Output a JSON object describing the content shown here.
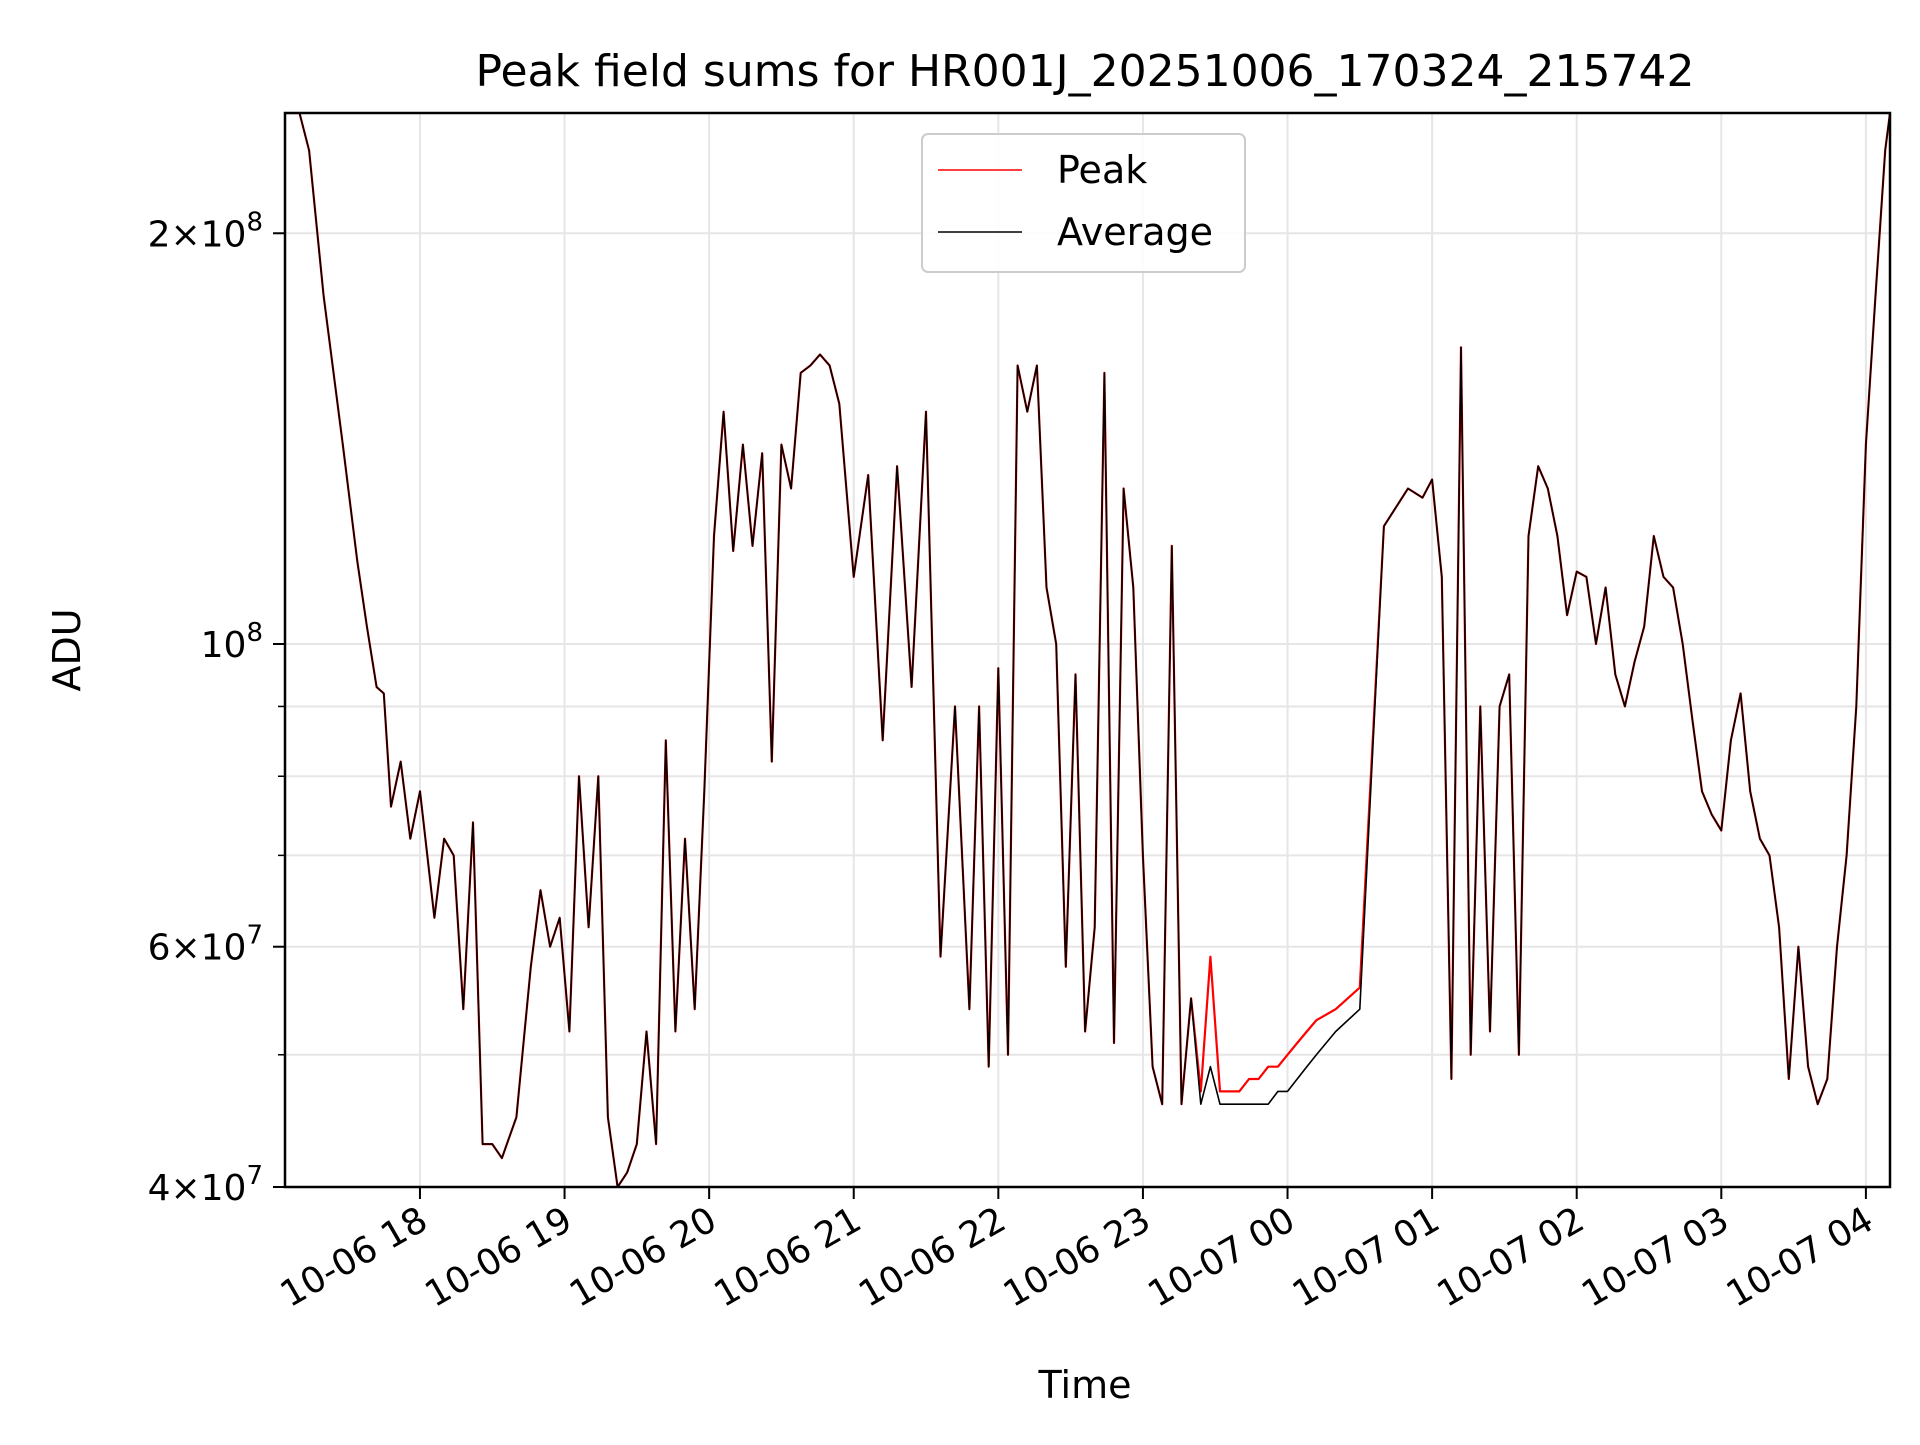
{
  "chart_data": {
    "type": "line",
    "title": "Peak field sums for HR001J_20251006_170324_215742",
    "xlabel": "Time",
    "ylabel": "ADU",
    "x_range": [
      "2025-10-06 17:04",
      "2025-10-07 04:10"
    ],
    "ylim": [
      40000000,
      245000000
    ],
    "y_scale": "log",
    "grid": true,
    "legend_position": "upper center",
    "x_ticks": [
      "10-06 18",
      "10-06 19",
      "10-06 20",
      "10-06 21",
      "10-06 22",
      "10-06 23",
      "10-07 00",
      "10-07 01",
      "10-07 02",
      "10-07 03",
      "10-07 04"
    ],
    "y_tick_labels": [
      {
        "value": 40000000,
        "mantissa": "4",
        "exponent": "7"
      },
      {
        "value": 60000000,
        "mantissa": "6",
        "exponent": "7"
      },
      {
        "value": 100000000,
        "mantissa": "",
        "exponent": "8"
      },
      {
        "value": 200000000,
        "mantissa": "2",
        "exponent": "8"
      }
    ],
    "y_minor_gridlines": [
      50000000,
      70000000,
      80000000,
      90000000
    ],
    "x": [
      "2025-10-06 17:04",
      "2025-10-06 17:10",
      "2025-10-06 17:14",
      "2025-10-06 17:20",
      "2025-10-06 17:28",
      "2025-10-06 17:34",
      "2025-10-06 17:38",
      "2025-10-06 17:42",
      "2025-10-06 17:45",
      "2025-10-06 17:48",
      "2025-10-06 17:52",
      "2025-10-06 17:56",
      "2025-10-06 18:00",
      "2025-10-06 18:06",
      "2025-10-06 18:10",
      "2025-10-06 18:14",
      "2025-10-06 18:18",
      "2025-10-06 18:22",
      "2025-10-06 18:26",
      "2025-10-06 18:30",
      "2025-10-06 18:34",
      "2025-10-06 18:40",
      "2025-10-06 18:46",
      "2025-10-06 18:50",
      "2025-10-06 18:54",
      "2025-10-06 18:58",
      "2025-10-06 19:02",
      "2025-10-06 19:06",
      "2025-10-06 19:10",
      "2025-10-06 19:14",
      "2025-10-06 19:18",
      "2025-10-06 19:22",
      "2025-10-06 19:26",
      "2025-10-06 19:30",
      "2025-10-06 19:34",
      "2025-10-06 19:38",
      "2025-10-06 19:42",
      "2025-10-06 19:46",
      "2025-10-06 19:50",
      "2025-10-06 19:54",
      "2025-10-06 19:58",
      "2025-10-06 20:02",
      "2025-10-06 20:06",
      "2025-10-06 20:10",
      "2025-10-06 20:14",
      "2025-10-06 20:18",
      "2025-10-06 20:22",
      "2025-10-06 20:26",
      "2025-10-06 20:30",
      "2025-10-06 20:34",
      "2025-10-06 20:38",
      "2025-10-06 20:42",
      "2025-10-06 20:46",
      "2025-10-06 20:50",
      "2025-10-06 20:54",
      "2025-10-06 21:00",
      "2025-10-06 21:06",
      "2025-10-06 21:12",
      "2025-10-06 21:18",
      "2025-10-06 21:24",
      "2025-10-06 21:30",
      "2025-10-06 21:36",
      "2025-10-06 21:42",
      "2025-10-06 21:48",
      "2025-10-06 21:52",
      "2025-10-06 21:56",
      "2025-10-06 22:00",
      "2025-10-06 22:04",
      "2025-10-06 22:08",
      "2025-10-06 22:12",
      "2025-10-06 22:16",
      "2025-10-06 22:20",
      "2025-10-06 22:24",
      "2025-10-06 22:28",
      "2025-10-06 22:32",
      "2025-10-06 22:36",
      "2025-10-06 22:40",
      "2025-10-06 22:44",
      "2025-10-06 22:48",
      "2025-10-06 22:52",
      "2025-10-06 22:56",
      "2025-10-06 23:00",
      "2025-10-06 23:04",
      "2025-10-06 23:08",
      "2025-10-06 23:12",
      "2025-10-06 23:16",
      "2025-10-06 23:20",
      "2025-10-06 23:24",
      "2025-10-06 23:28",
      "2025-10-06 23:32",
      "2025-10-06 23:36",
      "2025-10-06 23:40",
      "2025-10-06 23:44",
      "2025-10-06 23:48",
      "2025-10-06 23:52",
      "2025-10-06 23:56",
      "2025-10-07 00:00",
      "2025-10-07 00:04",
      "2025-10-07 00:08",
      "2025-10-07 00:12",
      "2025-10-07 00:20",
      "2025-10-07 00:30",
      "2025-10-07 00:40",
      "2025-10-07 00:50",
      "2025-10-07 00:56",
      "2025-10-07 01:00",
      "2025-10-07 01:04",
      "2025-10-07 01:08",
      "2025-10-07 01:12",
      "2025-10-07 01:16",
      "2025-10-07 01:20",
      "2025-10-07 01:24",
      "2025-10-07 01:28",
      "2025-10-07 01:32",
      "2025-10-07 01:36",
      "2025-10-07 01:40",
      "2025-10-07 01:44",
      "2025-10-07 01:48",
      "2025-10-07 01:52",
      "2025-10-07 01:56",
      "2025-10-07 02:00",
      "2025-10-07 02:04",
      "2025-10-07 02:08",
      "2025-10-07 02:12",
      "2025-10-07 02:16",
      "2025-10-07 02:20",
      "2025-10-07 02:24",
      "2025-10-07 02:28",
      "2025-10-07 02:32",
      "2025-10-07 02:36",
      "2025-10-07 02:40",
      "2025-10-07 02:44",
      "2025-10-07 02:48",
      "2025-10-07 02:52",
      "2025-10-07 02:56",
      "2025-10-07 03:00",
      "2025-10-07 03:04",
      "2025-10-07 03:08",
      "2025-10-07 03:12",
      "2025-10-07 03:16",
      "2025-10-07 03:20",
      "2025-10-07 03:24",
      "2025-10-07 03:28",
      "2025-10-07 03:32",
      "2025-10-07 03:36",
      "2025-10-07 03:40",
      "2025-10-07 03:44",
      "2025-10-07 03:48",
      "2025-10-07 03:52",
      "2025-10-07 03:56",
      "2025-10-07 04:00",
      "2025-10-07 04:04",
      "2025-10-07 04:08",
      "2025-10-07 04:10"
    ],
    "series": [
      {
        "name": "Peak",
        "color": "#ff0000",
        "values": [
          245,
          245,
          230,
          180,
          140,
          115,
          103,
          93,
          92,
          76,
          82,
          72,
          78,
          63,
          72,
          70,
          54,
          74,
          43,
          43,
          42,
          45,
          58,
          66,
          60,
          63,
          52,
          80,
          62,
          80,
          45,
          40,
          41,
          43,
          52,
          43,
          85,
          52,
          72,
          54,
          78,
          120,
          148,
          117,
          140,
          118,
          138,
          82,
          140,
          130,
          158,
          160,
          163,
          160,
          150,
          112,
          133,
          85,
          135,
          93,
          148,
          59,
          90,
          54,
          90,
          49,
          96,
          50,
          160,
          148,
          160,
          110,
          100,
          58,
          95,
          52,
          62,
          158,
          51,
          130,
          110,
          70,
          49,
          46,
          118,
          46,
          55,
          47,
          59,
          47,
          47,
          47,
          48,
          48,
          49,
          49,
          50,
          51,
          52,
          53,
          54,
          56,
          122,
          130,
          128,
          132,
          112,
          48,
          165,
          50,
          90,
          52,
          90,
          95,
          50,
          120,
          135,
          130,
          120,
          105,
          113,
          112,
          100,
          110,
          95,
          90,
          97,
          103,
          120,
          112,
          110,
          100,
          88,
          78,
          75,
          73,
          85,
          92,
          78,
          72,
          70,
          62,
          48,
          60,
          49,
          46,
          48,
          60,
          70,
          90,
          140,
          180,
          230,
          245
        ]
      },
      {
        "name": "Average",
        "color": "#000000",
        "values": [
          245,
          245,
          230,
          180,
          140,
          115,
          103,
          93,
          92,
          76,
          82,
          72,
          78,
          63,
          72,
          70,
          54,
          74,
          43,
          43,
          42,
          45,
          58,
          66,
          60,
          63,
          52,
          80,
          62,
          80,
          45,
          40,
          41,
          43,
          52,
          43,
          85,
          52,
          72,
          54,
          78,
          120,
          148,
          117,
          140,
          118,
          138,
          82,
          140,
          130,
          158,
          160,
          163,
          160,
          150,
          112,
          133,
          85,
          135,
          93,
          148,
          59,
          90,
          54,
          90,
          49,
          96,
          50,
          160,
          148,
          160,
          110,
          100,
          58,
          95,
          52,
          62,
          158,
          51,
          130,
          110,
          70,
          49,
          46,
          118,
          46,
          55,
          46,
          49,
          46,
          46,
          46,
          46,
          46,
          46,
          47,
          47,
          48,
          49,
          50,
          52,
          54,
          122,
          130,
          128,
          132,
          112,
          48,
          165,
          50,
          90,
          52,
          90,
          95,
          50,
          120,
          135,
          130,
          120,
          105,
          113,
          112,
          100,
          110,
          95,
          90,
          97,
          103,
          120,
          112,
          110,
          100,
          88,
          78,
          75,
          73,
          85,
          92,
          78,
          72,
          70,
          62,
          48,
          60,
          49,
          46,
          48,
          60,
          70,
          90,
          140,
          180,
          230,
          245
        ]
      }
    ],
    "values_unit": "1e6 ADU"
  }
}
